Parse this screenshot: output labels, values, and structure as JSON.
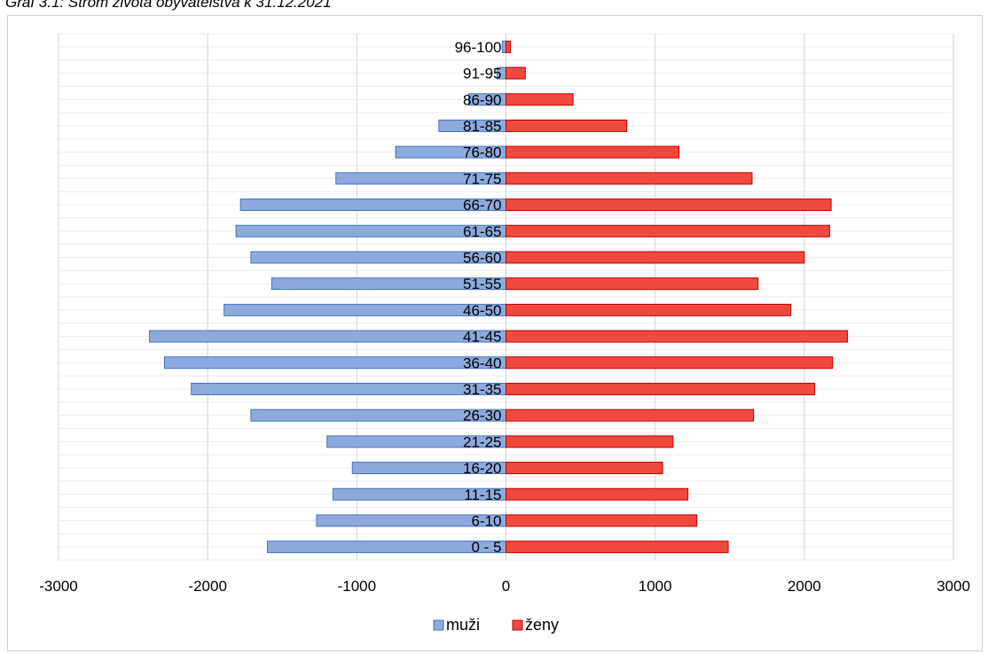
{
  "caption": "Graf 3.1: Strom života obyvatelstva k 31.12.2021",
  "chart_data": {
    "type": "bar",
    "orientation": "horizontal",
    "categories": [
      "0 - 5",
      "6-10",
      "11-15",
      "16-20",
      "21-25",
      "26-30",
      "31-35",
      "36-40",
      "41-45",
      "46-50",
      "51-55",
      "56-60",
      "61-65",
      "66-70",
      "71-75",
      "76-80",
      "81-85",
      "86-90",
      "91-95",
      "96-100"
    ],
    "series": [
      {
        "name": "muži",
        "color": "#8EA9DB",
        "stroke": "#4472C4",
        "values": [
          -1600,
          -1270,
          -1160,
          -1030,
          -1200,
          -1710,
          -2110,
          -2290,
          -2390,
          -1890,
          -1570,
          -1710,
          -1810,
          -1780,
          -1140,
          -740,
          -450,
          -250,
          -60,
          -25
        ]
      },
      {
        "name": "ženy",
        "color": "#F04A3E",
        "stroke": "#C00000",
        "values": [
          1490,
          1280,
          1220,
          1050,
          1120,
          1660,
          2070,
          2190,
          2290,
          1910,
          1690,
          2000,
          2170,
          2180,
          1650,
          1160,
          810,
          450,
          130,
          30
        ]
      }
    ],
    "xlim": [
      -3000,
      3000
    ],
    "xticks": [
      -3000,
      -2000,
      -1000,
      0,
      1000,
      2000,
      3000
    ],
    "grid": true,
    "legend": "bottom"
  }
}
